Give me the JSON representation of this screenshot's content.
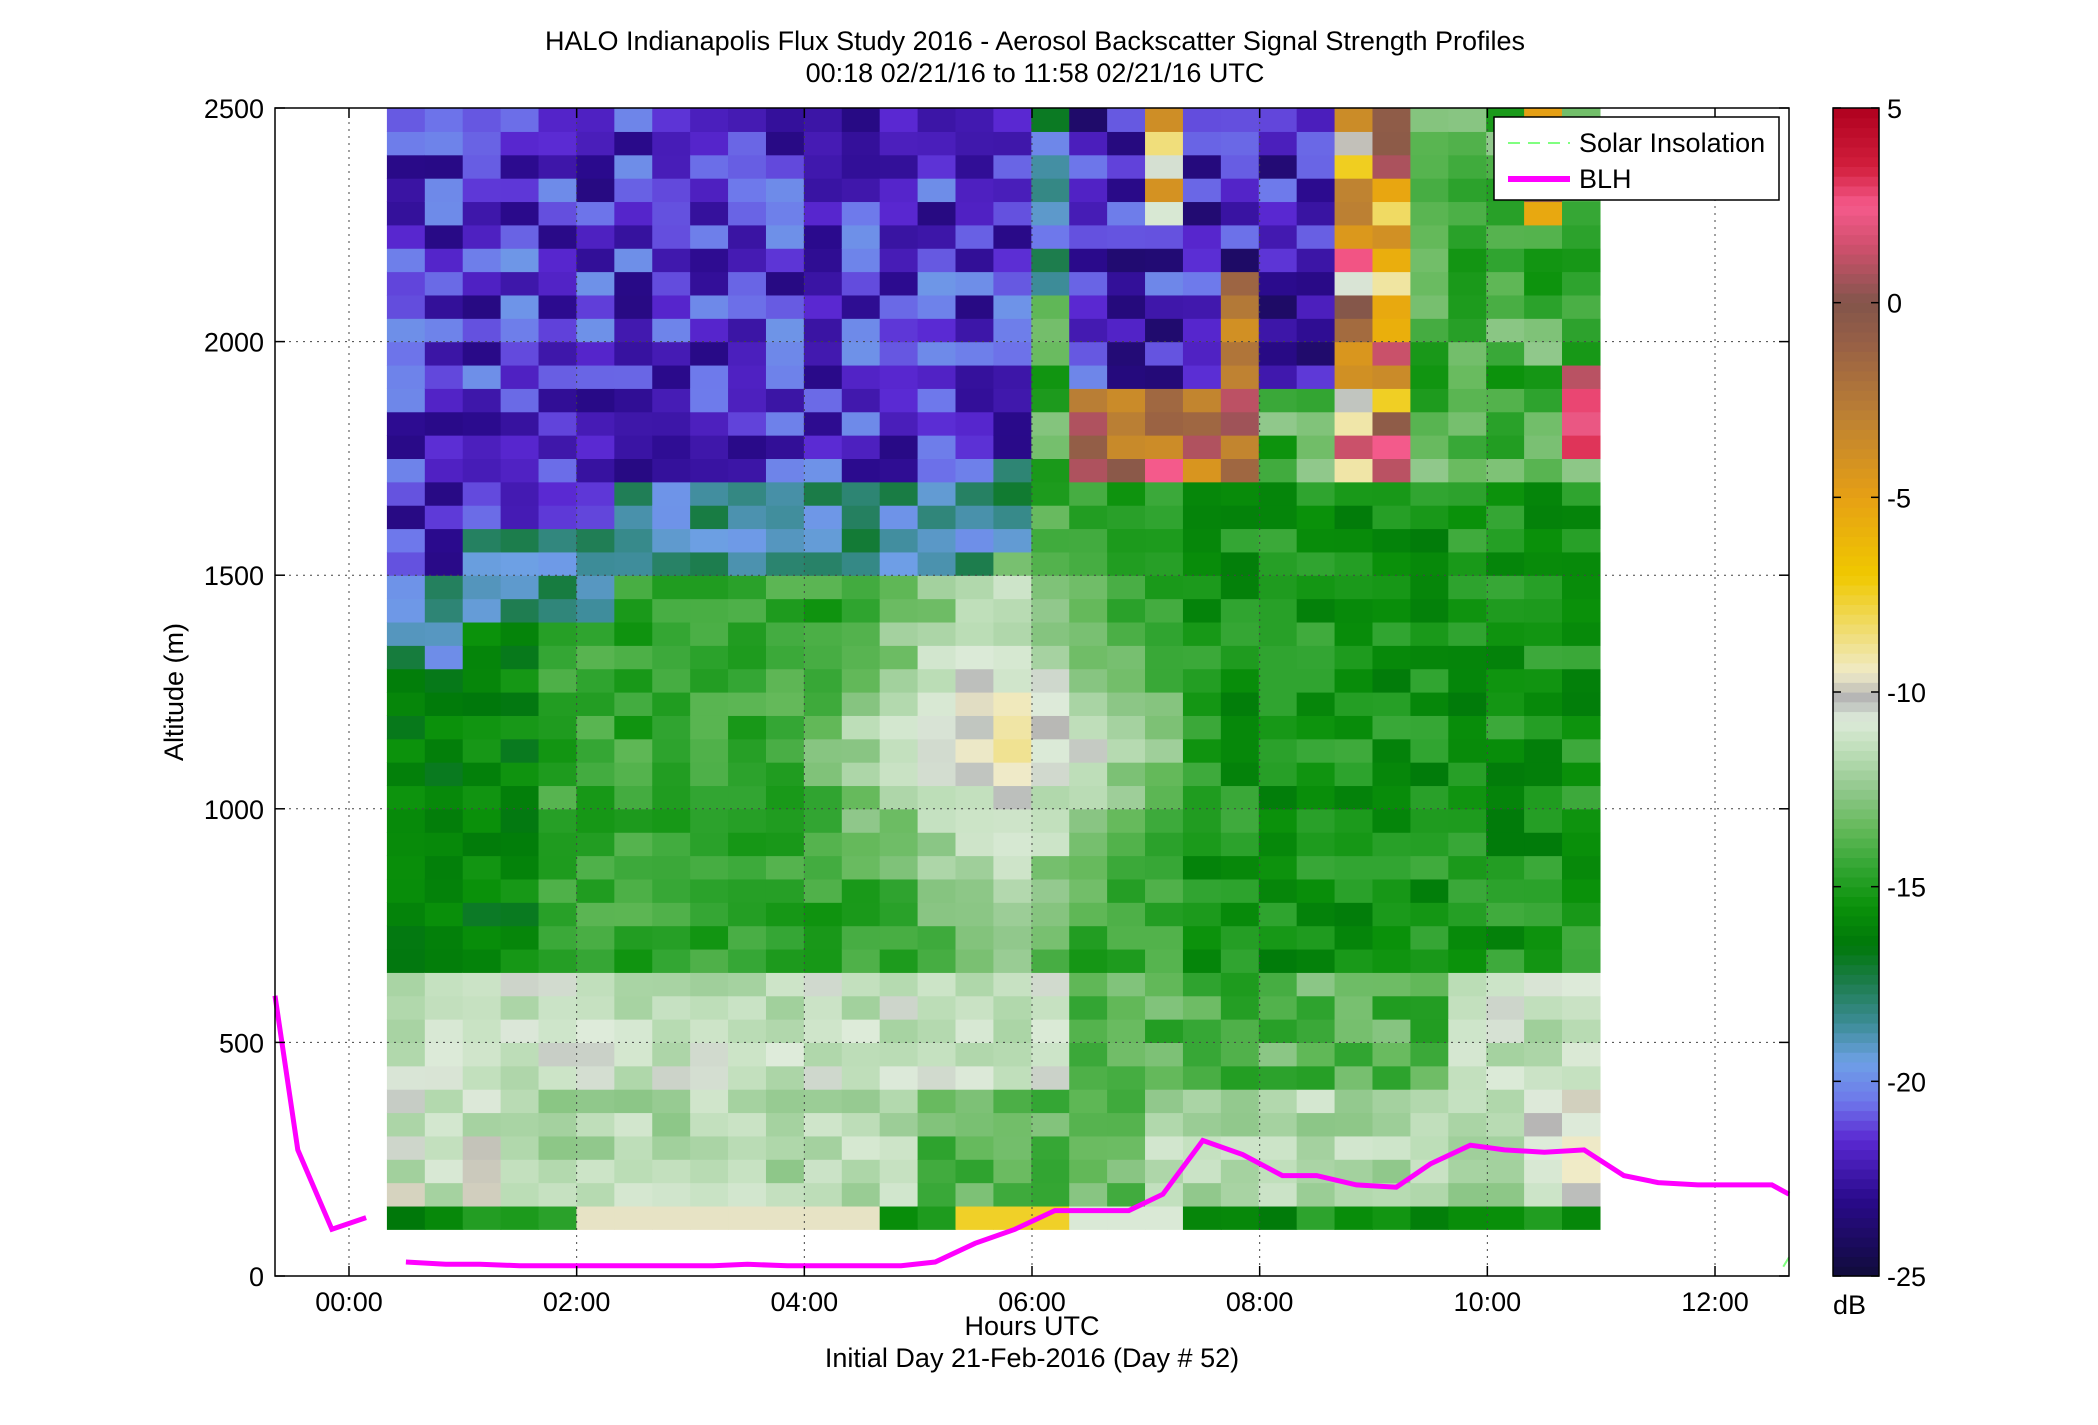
{
  "chart_data": {
    "type": "heatmap",
    "title": "HALO Indianapolis Flux Study 2016 - Aerosol Backscatter Signal Strength Profiles",
    "subtitle": "00:18 02/21/16 to 11:58 02/21/16  UTC",
    "xlabel": "Hours UTC",
    "xlabel2": "Initial Day 21-Feb-2016 (Day # 52)",
    "ylabel": "Altitude (m)",
    "colorbar_label": "dB",
    "xlim": [
      -0.65,
      12.65
    ],
    "ylim": [
      0,
      2500
    ],
    "clim": [
      -25,
      5
    ],
    "grid": true,
    "x_ticks": [
      0,
      2,
      4,
      6,
      8,
      10,
      12
    ],
    "x_tick_labels": [
      "00:00",
      "02:00",
      "04:00",
      "06:00",
      "08:00",
      "10:00",
      "12:00"
    ],
    "y_ticks": [
      0,
      500,
      1000,
      1500,
      2000,
      2500
    ],
    "y_tick_labels": [
      "0",
      "500",
      "1000",
      "1500",
      "2000",
      "2500"
    ],
    "colorbar_ticks": [
      5,
      0,
      -5,
      -10,
      -15,
      -20,
      -25
    ],
    "colorbar_tick_labels": [
      "5",
      "0",
      "-5",
      "-10",
      "-15",
      "-20",
      "-25"
    ],
    "legend_position": "top-right",
    "legend": [
      {
        "name": "Solar Insolation",
        "color": "#80ff80",
        "style": "dashed"
      },
      {
        "name": "BLH",
        "color": "#ff00ff",
        "style": "solid"
      }
    ],
    "heatmap": {
      "x_start_hours": 0.333,
      "x_step_hours": 0.333,
      "y_start_m": 100,
      "y_step_m": 50,
      "columns": 32,
      "rows": 48,
      "units": "dB"
    },
    "series": [
      {
        "name": "BLH",
        "color": "#ff00ff",
        "segments": [
          {
            "x": [
              -0.65,
              -0.45,
              -0.15,
              0.15
            ],
            "y": [
              600,
              270,
              100,
              125
            ]
          },
          {
            "x": [
              0.5,
              0.85,
              1.15,
              1.5,
              1.85,
              2.15,
              2.5,
              2.85,
              3.2,
              3.5,
              3.85,
              4.15,
              4.5,
              4.85,
              5.15,
              5.5,
              5.85,
              6.2,
              6.5,
              6.85,
              7.15,
              7.5,
              7.85,
              8.2,
              8.5,
              8.85,
              9.2,
              9.5,
              9.85,
              10.15,
              10.5,
              10.85,
              11.2,
              11.5,
              11.85,
              12.2,
              12.5,
              12.65
            ],
            "y": [
              30,
              25,
              25,
              22,
              22,
              22,
              22,
              22,
              22,
              25,
              22,
              22,
              22,
              22,
              30,
              70,
              100,
              140,
              140,
              140,
              175,
              290,
              260,
              215,
              215,
              195,
              190,
              240,
              280,
              270,
              265,
              270,
              215,
              200,
              195,
              195,
              195,
              175
            ]
          }
        ]
      },
      {
        "name": "Solar Insolation",
        "color": "#80ff80",
        "segments": [
          {
            "x": [
              12.6,
              12.65
            ],
            "y": [
              20,
              40
            ]
          }
        ]
      }
    ]
  }
}
